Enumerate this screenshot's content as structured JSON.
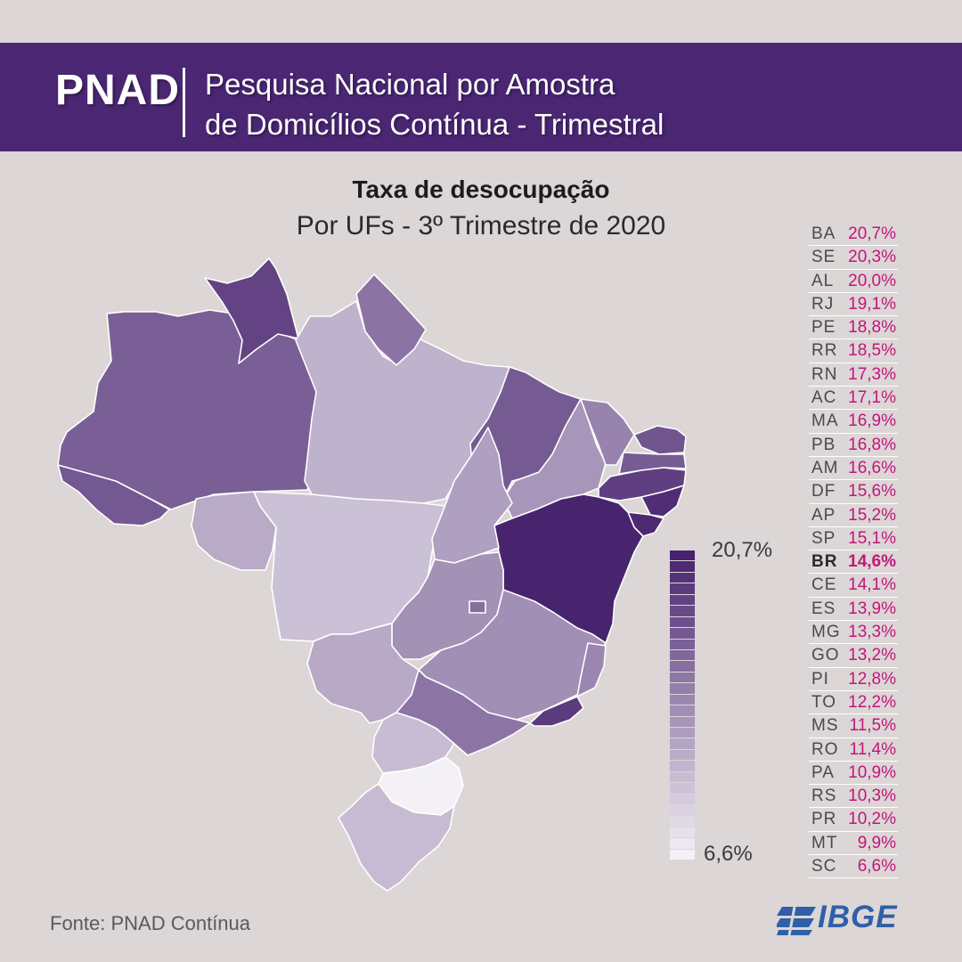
{
  "header": {
    "brand": "PNAD",
    "line1": "Pesquisa Nacional por Amostra",
    "line2": "de Domicílios Contínua - Trimestral"
  },
  "map": {
    "title": "Taxa de desocupação",
    "subtitle": "Por UFs - 3º Trimestre de 2020",
    "scale_max_label": "20,7%",
    "scale_min_label": "6,6%",
    "scale_min_value": 6.6,
    "scale_max_value": 20.7,
    "color_light": "#f3f1f6",
    "color_dark": "#48236e",
    "border_color": "#ffffff",
    "states": [
      {
        "uf": "AC",
        "value": 17.1
      },
      {
        "uf": "AM",
        "value": 16.6
      },
      {
        "uf": "RR",
        "value": 18.5
      },
      {
        "uf": "PA",
        "value": 10.9
      },
      {
        "uf": "AP",
        "value": 15.2
      },
      {
        "uf": "RO",
        "value": 11.4
      },
      {
        "uf": "MT",
        "value": 9.9
      },
      {
        "uf": "MA",
        "value": 16.9
      },
      {
        "uf": "PI",
        "value": 12.8
      },
      {
        "uf": "CE",
        "value": 14.1
      },
      {
        "uf": "RN",
        "value": 17.3
      },
      {
        "uf": "PB",
        "value": 16.8
      },
      {
        "uf": "PE",
        "value": 18.8
      },
      {
        "uf": "AL",
        "value": 20.0
      },
      {
        "uf": "SE",
        "value": 20.3
      },
      {
        "uf": "BA",
        "value": 20.7
      },
      {
        "uf": "TO",
        "value": 12.2
      },
      {
        "uf": "GO",
        "value": 13.2
      },
      {
        "uf": "DF",
        "value": 15.6
      },
      {
        "uf": "MS",
        "value": 11.5
      },
      {
        "uf": "MG",
        "value": 13.3
      },
      {
        "uf": "ES",
        "value": 13.9
      },
      {
        "uf": "SP",
        "value": 15.1
      },
      {
        "uf": "RJ",
        "value": 19.1
      },
      {
        "uf": "PR",
        "value": 10.2
      },
      {
        "uf": "SC",
        "value": 6.6
      },
      {
        "uf": "RS",
        "value": 10.3
      }
    ]
  },
  "ranking": [
    {
      "uf": "BA",
      "value": "20,7%"
    },
    {
      "uf": "SE",
      "value": "20,3%"
    },
    {
      "uf": "AL",
      "value": "20,0%"
    },
    {
      "uf": "RJ",
      "value": "19,1%"
    },
    {
      "uf": "PE",
      "value": "18,8%"
    },
    {
      "uf": "RR",
      "value": "18,5%"
    },
    {
      "uf": "RN",
      "value": "17,3%"
    },
    {
      "uf": "AC",
      "value": "17,1%"
    },
    {
      "uf": "MA",
      "value": "16,9%"
    },
    {
      "uf": "PB",
      "value": "16,8%"
    },
    {
      "uf": "AM",
      "value": "16,6%"
    },
    {
      "uf": "DF",
      "value": "15,6%"
    },
    {
      "uf": "AP",
      "value": "15,2%"
    },
    {
      "uf": "SP",
      "value": "15,1%"
    },
    {
      "uf": "BR",
      "value": "14,6%",
      "highlight": true
    },
    {
      "uf": "CE",
      "value": "14,1%"
    },
    {
      "uf": "ES",
      "value": "13,9%"
    },
    {
      "uf": "MG",
      "value": "13,3%"
    },
    {
      "uf": "GO",
      "value": "13,2%"
    },
    {
      "uf": "PI",
      "value": "12,8%"
    },
    {
      "uf": "TO",
      "value": "12,2%"
    },
    {
      "uf": "MS",
      "value": "11,5%"
    },
    {
      "uf": "RO",
      "value": "11,4%"
    },
    {
      "uf": "PA",
      "value": "10,9%"
    },
    {
      "uf": "RS",
      "value": "10,3%"
    },
    {
      "uf": "PR",
      "value": "10,2%"
    },
    {
      "uf": "MT",
      "value": "9,9%"
    },
    {
      "uf": "SC",
      "value": "6,6%"
    }
  ],
  "footer": {
    "source": "Fonte:  PNAD Contínua",
    "logo_text": "IBGE",
    "logo_color": "#2f5fa8"
  }
}
